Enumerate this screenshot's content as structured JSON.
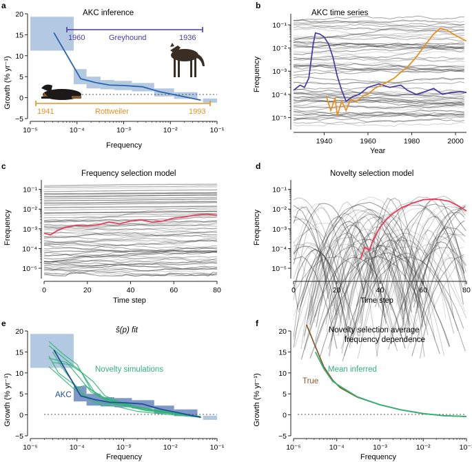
{
  "panels": {
    "a": {
      "label": "a",
      "title": "AKC inference",
      "xlabel": "Frequency",
      "ylabel": "Growth (% yr⁻¹)",
      "xticks": [
        "10⁻⁵",
        "10⁻⁴",
        "10⁻³",
        "10⁻²",
        "10⁻¹"
      ],
      "yticks": [
        "−5",
        "0",
        "5",
        "10",
        "15",
        "20"
      ],
      "greyhound": {
        "name": "Greyhound",
        "year_start": "1960",
        "year_end": "1936"
      },
      "rottweiler": {
        "name": "Rottweiler",
        "year_start": "1941",
        "year_end": "1993"
      }
    },
    "b": {
      "label": "b",
      "title": "AKC time series",
      "xlabel": "Year",
      "ylabel": "Frequency",
      "xticks": [
        "1940",
        "1960",
        "1980",
        "2000"
      ],
      "yticks": [
        "10⁻⁵",
        "10⁻⁴",
        "10⁻³",
        "10⁻²",
        "10⁻¹"
      ]
    },
    "c": {
      "label": "c",
      "title": "Frequency selection model",
      "xlabel": "Time step",
      "ylabel": "Frequency",
      "xticks": [
        "0",
        "20",
        "40",
        "60",
        "80"
      ],
      "yticks": [
        "10⁻⁵",
        "10⁻⁴",
        "10⁻³",
        "10⁻²",
        "10⁻¹"
      ]
    },
    "d": {
      "label": "d",
      "title": "Novelty selection model",
      "xlabel": "Time step",
      "ylabel": "Frequency",
      "xticks": [
        "0",
        "20",
        "40",
        "60",
        "80"
      ],
      "yticks": [
        "10⁻⁵",
        "10⁻⁴",
        "10⁻³",
        "10⁻²",
        "10⁻¹"
      ]
    },
    "e": {
      "label": "e",
      "title": "ŝ(p) fit",
      "xlabel": "Frequency",
      "ylabel": "Growth (% yr⁻¹)",
      "xticks": [
        "10⁻⁵",
        "10⁻⁴",
        "10⁻³",
        "10⁻²",
        "10⁻¹"
      ],
      "yticks": [
        "−5",
        "0",
        "5",
        "10",
        "15",
        "20"
      ],
      "legend_novelty": "Novelty simulations",
      "legend_akc": "AKC"
    },
    "f": {
      "label": "f",
      "title_line1": "Novelty selection average",
      "title_line2": "frequency dependence",
      "xlabel": "Frequency",
      "ylabel": "Growth (% yr⁻¹)",
      "xticks": [
        "10⁻⁵",
        "10⁻⁴",
        "10⁻³",
        "10⁻²",
        "10⁻¹"
      ],
      "yticks": [
        "−5",
        "0",
        "5",
        "10",
        "15",
        "20"
      ],
      "legend_mean": "Mean inferred",
      "legend_true": "True"
    }
  },
  "colors": {
    "blue_line": "#2a63ad",
    "blue_fill": "#b3c8e1",
    "blue_dark": "#1f4e96",
    "purple": "#4b3aa8",
    "orange": "#e8901e",
    "red": "#e83a57",
    "green": "#2fb477",
    "brown": "#8b5a2b",
    "grey": "#555555"
  },
  "chart_data": [
    {
      "panel": "a",
      "type": "line",
      "title": "AKC inference",
      "xscale": "log",
      "xlim": [
        1e-05,
        0.1
      ],
      "ylim": [
        -5,
        20
      ],
      "akc_curve": {
        "x": [
          3.2e-05,
          0.00012,
          0.00025,
          0.0005,
          0.001,
          0.0025,
          0.006,
          0.015,
          0.045
        ],
        "y": [
          15.5,
          4.5,
          3.6,
          3.0,
          2.9,
          2.6,
          1.4,
          0.5,
          -0.6
        ]
      },
      "bins": [
        {
          "x0": 1e-05,
          "x1": 8.5e-05,
          "ylo": 11.2,
          "yhi": 19.3
        },
        {
          "x0": 8.5e-05,
          "x1": 0.00016,
          "ylo": 3.2,
          "yhi": 6.8
        },
        {
          "x0": 0.00016,
          "x1": 0.00032,
          "ylo": 2.2,
          "yhi": 5.0
        },
        {
          "x0": 0.00032,
          "x1": 0.00063,
          "ylo": 2.0,
          "yhi": 4.2
        },
        {
          "x0": 0.00063,
          "x1": 0.0015,
          "ylo": 1.8,
          "yhi": 4.0
        },
        {
          "x0": 0.0015,
          "x1": 0.0045,
          "ylo": 1.5,
          "yhi": 3.5
        },
        {
          "x0": 0.0045,
          "x1": 0.012,
          "ylo": 0.3,
          "yhi": 2.2
        },
        {
          "x0": 0.012,
          "x1": 0.038,
          "ylo": -0.3,
          "yhi": 1.3
        },
        {
          "x0": 0.05,
          "x1": 0.1,
          "ylo": -1.2,
          "yhi": -0.2
        }
      ],
      "greyhound_range": {
        "x": [
          6e-05,
          0.055
        ],
        "y": 16.2
      },
      "rottweiler_range": {
        "x": [
          1.2e-05,
          0.08
        ],
        "y": -2.3
      }
    },
    {
      "panel": "b",
      "type": "line",
      "title": "AKC time series",
      "xlim": [
        1926,
        2005
      ],
      "yscale": "log",
      "ylim": [
        3e-06,
        0.3
      ],
      "greyhound": {
        "x": [
          1926,
          1929,
          1931,
          1933,
          1935,
          1936,
          1938,
          1940,
          1942,
          1944,
          1946,
          1948,
          1950,
          1953,
          1956,
          1960,
          1965,
          1970,
          1975,
          1978,
          1982,
          1986,
          1990,
          1994,
          1998,
          2002,
          2005
        ],
        "y": [
          0.00015,
          0.00025,
          0.0002,
          0.0005,
          0.015,
          0.045,
          0.04,
          0.03,
          0.015,
          0.004,
          0.0006,
          0.00015,
          5e-05,
          8e-05,
          0.0001,
          0.0002,
          0.00028,
          0.0002,
          0.00025,
          0.00015,
          0.0001,
          0.00013,
          0.00018,
          0.0001,
          0.00012,
          0.00013,
          0.00012
        ]
      },
      "rottweiler": {
        "x": [
          1941,
          1943,
          1945,
          1946,
          1948,
          1950,
          1952,
          1955,
          1958,
          1960,
          1963,
          1966,
          1969,
          1972,
          1975,
          1978,
          1982,
          1986,
          1990,
          1993,
          1996,
          2000,
          2003,
          2005
        ],
        "y": [
          8e-05,
          2e-05,
          7e-05,
          1.2e-05,
          5e-05,
          2e-05,
          6e-05,
          5e-05,
          9e-05,
          0.0001,
          0.00018,
          0.00025,
          0.00035,
          0.0005,
          0.0009,
          0.0015,
          0.004,
          0.013,
          0.04,
          0.07,
          0.06,
          0.035,
          0.025,
          0.02
        ]
      }
    },
    {
      "panel": "c",
      "type": "line",
      "title": "Frequency selection model",
      "xlim": [
        0,
        80
      ],
      "yscale": "log",
      "ylim": [
        3e-06,
        0.3
      ],
      "highlight": {
        "x": [
          0,
          3,
          6,
          10,
          15,
          20,
          25,
          30,
          35,
          40,
          45,
          50,
          55,
          60,
          65,
          70,
          75,
          80
        ],
        "y": [
          0.0006,
          0.0005,
          0.0008,
          0.0012,
          0.0015,
          0.0014,
          0.0016,
          0.0022,
          0.0018,
          0.0025,
          0.0028,
          0.0022,
          0.0025,
          0.0035,
          0.004,
          0.005,
          0.0055,
          0.005
        ]
      }
    },
    {
      "panel": "d",
      "type": "line",
      "title": "Novelty selection model",
      "xlim": [
        0,
        80
      ],
      "yscale": "log",
      "ylim": [
        3e-06,
        0.3
      ],
      "highlight": {
        "x": [
          31,
          33,
          35,
          37,
          40,
          43,
          46,
          50,
          55,
          60,
          65,
          68,
          72,
          76,
          80
        ],
        "y": [
          3e-05,
          0.00012,
          8e-05,
          0.0003,
          0.0012,
          0.003,
          0.006,
          0.012,
          0.02,
          0.03,
          0.032,
          0.03,
          0.025,
          0.015,
          0.008
        ]
      }
    },
    {
      "panel": "e",
      "type": "line",
      "title": "ŝ(p) fit",
      "xscale": "log",
      "xlim": [
        1e-05,
        0.1
      ],
      "ylim": [
        -5,
        20
      ],
      "akc": {
        "x": [
          3.2e-05,
          0.00012,
          0.00025,
          0.0005,
          0.001,
          0.0025,
          0.006,
          0.015,
          0.045
        ],
        "y": [
          15.5,
          4.5,
          3.6,
          3.0,
          2.9,
          2.6,
          1.4,
          0.5,
          -0.6
        ]
      },
      "novelty_sims": [
        {
          "x": [
            2.5e-05,
            5e-05,
            0.0001,
            0.0002,
            0.0004,
            0.001,
            0.003,
            0.01,
            0.045
          ],
          "y": [
            17.5,
            14.5,
            12.0,
            6.0,
            4.0,
            2.5,
            1.5,
            0.5,
            -0.5
          ]
        },
        {
          "x": [
            2.5e-05,
            6e-05,
            0.00012,
            0.00025,
            0.0005,
            0.0012,
            0.003,
            0.01,
            0.045
          ],
          "y": [
            16.5,
            13.0,
            10.5,
            5.0,
            3.0,
            2.0,
            1.0,
            0.3,
            -0.5
          ]
        },
        {
          "x": [
            3e-05,
            5e-05,
            0.0001,
            0.00015,
            0.0003,
            0.0008,
            0.002,
            0.008,
            0.045
          ],
          "y": [
            15.0,
            11.0,
            6.5,
            7.0,
            4.5,
            3.0,
            1.8,
            0.8,
            -0.4
          ]
        },
        {
          "x": [
            2.5e-05,
            4e-05,
            8e-05,
            0.00015,
            0.0003,
            0.001,
            0.003,
            0.01,
            0.045
          ],
          "y": [
            14.0,
            10.0,
            7.5,
            4.5,
            3.0,
            2.2,
            1.2,
            0.4,
            -0.5
          ]
        },
        {
          "x": [
            2.5e-05,
            6e-05,
            0.00011,
            0.0002,
            0.00035,
            0.0009,
            0.0025,
            0.009,
            0.045
          ],
          "y": [
            13.5,
            12.5,
            9.0,
            5.5,
            4.0,
            2.4,
            1.3,
            0.6,
            -0.4
          ]
        },
        {
          "x": [
            3e-05,
            7e-05,
            0.00013,
            0.00022,
            0.0004,
            0.001,
            0.0025,
            0.01,
            0.045
          ],
          "y": [
            12.5,
            12.0,
            10.0,
            8.0,
            4.5,
            2.8,
            1.6,
            0.5,
            -0.5
          ]
        },
        {
          "x": [
            2.5e-05,
            5e-05,
            9e-05,
            0.00016,
            0.0003,
            0.0007,
            0.002,
            0.007,
            0.045
          ],
          "y": [
            11.5,
            8.5,
            6.0,
            4.0,
            2.5,
            2.0,
            0.8,
            0.2,
            -0.6
          ]
        }
      ],
      "bins": [
        {
          "x0": 1e-05,
          "x1": 8.5e-05,
          "ylo": 11.2,
          "yhi": 19.3
        },
        {
          "x0": 8.5e-05,
          "x1": 0.00016,
          "ylo": 3.2,
          "yhi": 6.8
        },
        {
          "x0": 0.00016,
          "x1": 0.00032,
          "ylo": 2.2,
          "yhi": 5.0
        },
        {
          "x0": 0.00032,
          "x1": 0.00063,
          "ylo": 2.0,
          "yhi": 4.2
        },
        {
          "x0": 0.00063,
          "x1": 0.0015,
          "ylo": 1.8,
          "yhi": 4.0
        },
        {
          "x0": 0.0015,
          "x1": 0.0045,
          "ylo": 1.5,
          "yhi": 3.5
        },
        {
          "x0": 0.0045,
          "x1": 0.012,
          "ylo": 0.3,
          "yhi": 2.2
        },
        {
          "x0": 0.012,
          "x1": 0.038,
          "ylo": -0.3,
          "yhi": 1.3
        },
        {
          "x0": 0.05,
          "x1": 0.1,
          "ylo": -1.2,
          "yhi": -0.2
        }
      ]
    },
    {
      "panel": "f",
      "type": "line",
      "title": "Novelty selection average frequency dependence",
      "xscale": "log",
      "xlim": [
        1e-05,
        0.1
      ],
      "ylim": [
        -5,
        20
      ],
      "true": {
        "x": [
          2e-05,
          3e-05,
          5e-05,
          8e-05,
          0.00012,
          0.0003,
          0.001,
          0.003,
          0.01,
          0.03,
          0.1
        ],
        "y": [
          21.5,
          17.0,
          11.5,
          8.3,
          6.5,
          4.2,
          2.4,
          1.2,
          0.3,
          -0.2,
          -0.4
        ]
      },
      "mean_inferred": {
        "x": [
          3.2e-05,
          5e-05,
          8e-05,
          0.00012,
          0.0003,
          0.001,
          0.003,
          0.01,
          0.03,
          0.1
        ],
        "y": [
          15.0,
          11.0,
          8.0,
          6.8,
          4.3,
          2.4,
          1.2,
          0.3,
          -0.2,
          -0.4
        ]
      }
    }
  ]
}
